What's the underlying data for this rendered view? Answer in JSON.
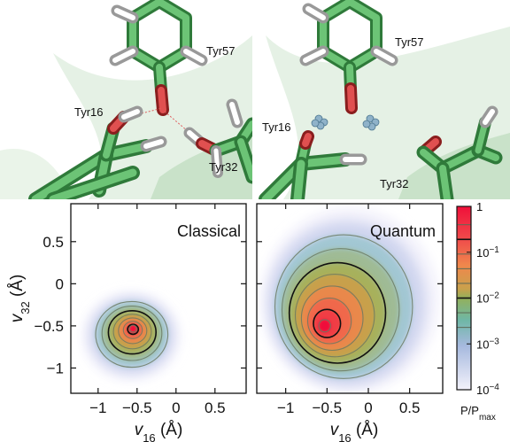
{
  "structures": {
    "left": {
      "residues": [
        "Tyr57",
        "Tyr16",
        "Tyr32"
      ]
    },
    "right": {
      "residues": [
        "Tyr57",
        "Tyr16",
        "Tyr32"
      ]
    }
  },
  "colorbar": {
    "label": "P/P",
    "label_subscript": "max",
    "ticks": [
      {
        "base": "1",
        "exp": ""
      },
      {
        "base": "10",
        "exp": "−1"
      },
      {
        "base": "10",
        "exp": "−2"
      },
      {
        "base": "10",
        "exp": "−3"
      },
      {
        "base": "10",
        "exp": "−4"
      }
    ],
    "colors_top_to_bottom": [
      "#f0103a",
      "#f26a4d",
      "#e99a4a",
      "#9fb055",
      "#6fb7a6",
      "#a6b9de",
      "#efeefa"
    ]
  },
  "chart_data": [
    {
      "type": "heatmap",
      "title": "Classical",
      "xlabel": "v16 (Å)",
      "ylabel": "v32 (Å)",
      "xlim": [
        -1.35,
        0.9
      ],
      "ylim": [
        -1.3,
        0.95
      ],
      "x_ticks": [
        "−1",
        "−0.5",
        "0",
        "0.5"
      ],
      "y_ticks": [
        "0.5",
        "0",
        "−0.5",
        "−1"
      ],
      "peak": {
        "x": -0.55,
        "y": -0.53,
        "value": 1
      },
      "extent_at_1e-4": {
        "x": [
          -1.2,
          0.05
        ],
        "y": [
          -1.15,
          -0.1
        ]
      }
    },
    {
      "type": "heatmap",
      "title": "Quantum",
      "xlabel": "v16 (Å)",
      "ylabel": "",
      "xlim": [
        -1.35,
        0.9
      ],
      "ylim": [
        -1.3,
        0.95
      ],
      "x_ticks": [
        "−1",
        "−0.5",
        "0",
        "0.5"
      ],
      "y_ticks": [],
      "peak": {
        "x": -0.55,
        "y": -0.52,
        "value": 1
      },
      "extent_at_1e-4": {
        "x": [
          -1.3,
          0.85
        ],
        "y": [
          -1.3,
          0.9
        ]
      }
    }
  ]
}
